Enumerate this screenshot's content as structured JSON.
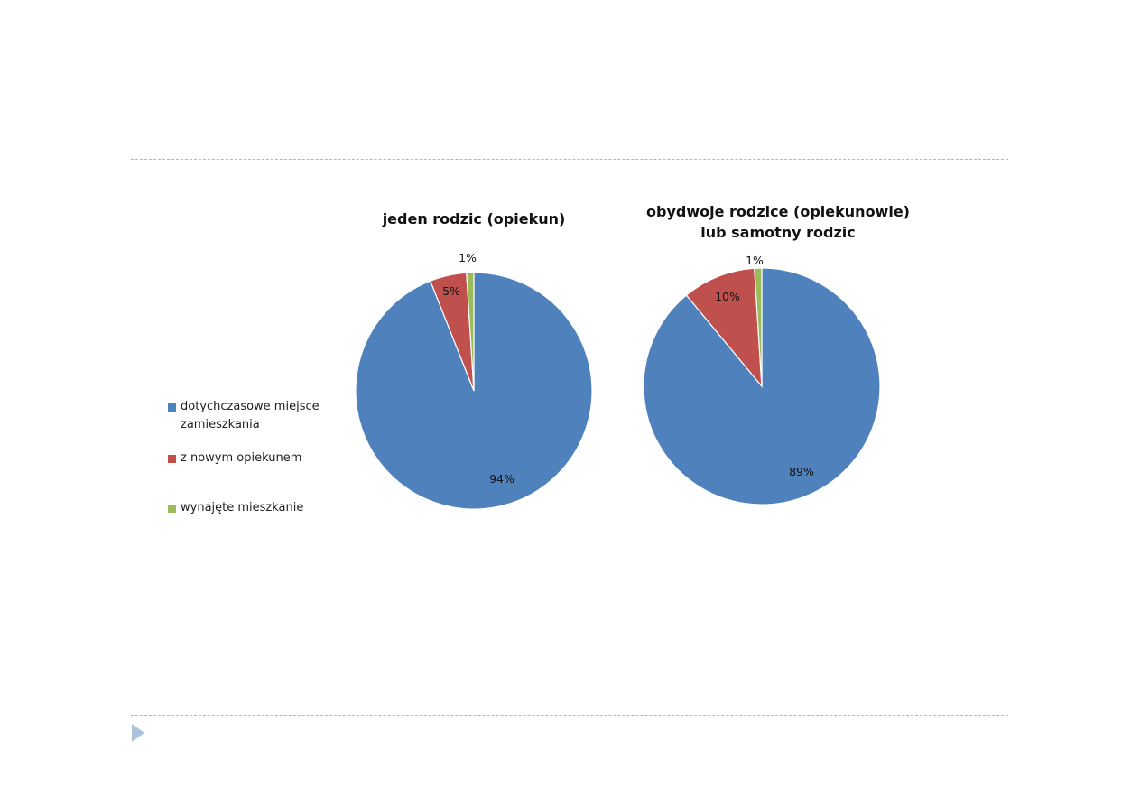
{
  "colors": {
    "blue": "#4f81bd",
    "red": "#c0504d",
    "green": "#9bbb59",
    "divider": "#9dbad6",
    "arrow": "#a9c3dc"
  },
  "legend": [
    {
      "label": "dotychczasowe miejsce zamieszkania",
      "color": "#4f81bd"
    },
    {
      "label": "z nowym opiekunem",
      "color": "#c0504d"
    },
    {
      "label": "wynajęte mieszkanie",
      "color": "#9bbb59"
    }
  ],
  "chart_data": [
    {
      "type": "pie",
      "title_lines": [
        "jeden rodzic (opiekun)"
      ],
      "slices": [
        {
          "name": "dotychczasowe miejsce zamieszkania",
          "value": 94,
          "label": "94%",
          "color": "#4f81bd"
        },
        {
          "name": "z nowym opiekunem",
          "value": 5,
          "label": "5%",
          "color": "#c0504d"
        },
        {
          "name": "wynajęte mieszkanie",
          "value": 1,
          "label": "1%",
          "color": "#9bbb59"
        }
      ],
      "legend_position": "left"
    },
    {
      "type": "pie",
      "title_lines": [
        "obydwoje rodzice (opiekunowie)",
        "lub samotny rodzic"
      ],
      "slices": [
        {
          "name": "dotychczasowe miejsce zamieszkania",
          "value": 89,
          "label": "89%",
          "color": "#4f81bd"
        },
        {
          "name": "z nowym opiekunem",
          "value": 10,
          "label": "10%",
          "color": "#c0504d"
        },
        {
          "name": "wynajęte mieszkanie",
          "value": 1,
          "label": "1%",
          "color": "#9bbb59"
        }
      ],
      "legend_position": "left"
    }
  ]
}
